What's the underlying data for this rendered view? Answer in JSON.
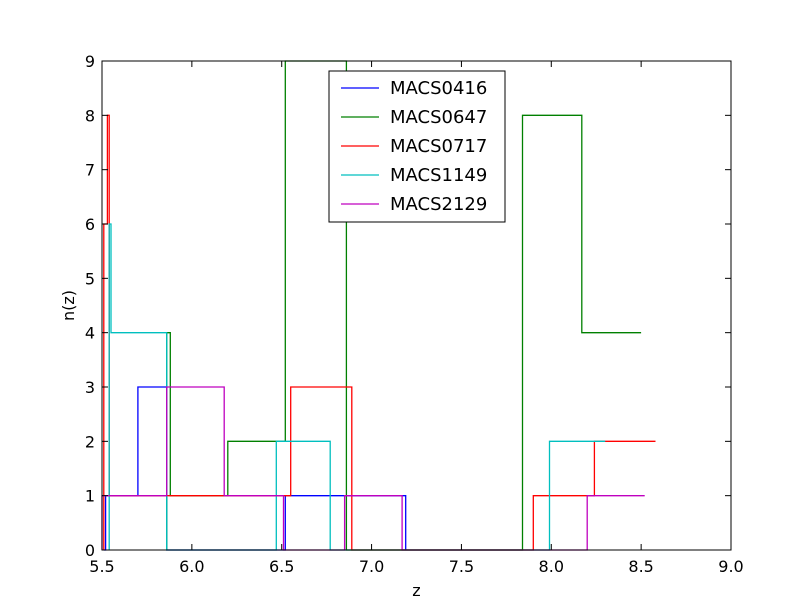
{
  "chart_data": {
    "type": "line",
    "title": "",
    "xlabel": "z",
    "ylabel": "n(z)",
    "xlim": [
      5.5,
      9.0
    ],
    "ylim": [
      0,
      9
    ],
    "xticks": [
      "5.5",
      "6.0",
      "6.5",
      "7.0",
      "7.5",
      "8.0",
      "8.5",
      "9.0"
    ],
    "yticks": [
      "0",
      "1",
      "2",
      "3",
      "4",
      "5",
      "6",
      "7",
      "8",
      "9"
    ],
    "grid": false,
    "legend_position": "top-center",
    "series": [
      {
        "name": "MACS0416",
        "color": "#0000ff",
        "x": [
          5.51,
          5.52,
          5.52,
          5.7,
          5.7,
          5.86,
          5.86,
          6.52,
          6.52,
          7.19,
          7.19,
          7.19
        ],
        "y": [
          0,
          0,
          1,
          1,
          3,
          3,
          0,
          0,
          1,
          1,
          0,
          0
        ]
      },
      {
        "name": "MACS0647",
        "color": "#008000",
        "x": [
          5.86,
          5.86,
          5.88,
          5.88,
          6.2,
          6.2,
          6.52,
          6.52,
          6.86,
          6.86,
          7.84,
          7.84,
          8.17,
          8.17,
          8.5
        ],
        "y": [
          0,
          4,
          4,
          1,
          1,
          2,
          2,
          9,
          9,
          0,
          0,
          8,
          8,
          4,
          4
        ]
      },
      {
        "name": "MACS0717",
        "color": "#ff0000",
        "x": [
          5.51,
          5.51,
          5.53,
          5.53,
          5.54,
          5.54,
          6.55,
          6.55,
          6.89,
          6.89,
          7.9,
          7.9,
          8.24,
          8.24,
          8.58
        ],
        "y": [
          0,
          6,
          6,
          8,
          8,
          1,
          1,
          3,
          3,
          0,
          0,
          1,
          1,
          2,
          2
        ]
      },
      {
        "name": "MACS1149",
        "color": "#00bfbf",
        "x": [
          5.54,
          5.54,
          5.55,
          5.55,
          5.86,
          5.86,
          6.47,
          6.47,
          6.77,
          6.77,
          7.99,
          7.99,
          8.3
        ],
        "y": [
          0,
          6,
          6,
          4,
          4,
          0,
          0,
          2,
          2,
          0,
          0,
          2,
          2
        ]
      },
      {
        "name": "MACS2129",
        "color": "#bf00bf",
        "x": [
          5.5,
          5.5,
          5.86,
          5.86,
          6.18,
          6.18,
          6.51,
          6.51,
          6.85,
          6.85,
          7.17,
          7.17,
          8.2,
          8.2,
          8.52
        ],
        "y": [
          0,
          1,
          1,
          3,
          3,
          1,
          1,
          0,
          0,
          1,
          1,
          0,
          0,
          1,
          1
        ]
      }
    ]
  }
}
